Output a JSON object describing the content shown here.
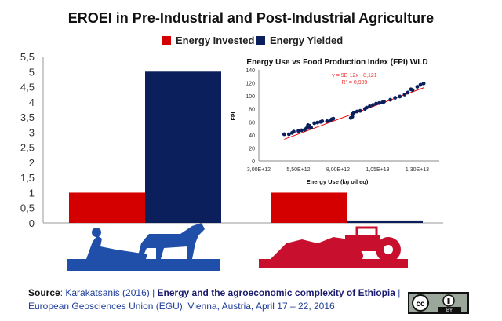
{
  "chart_data": [
    {
      "type": "bar",
      "title": "EROEI in Pre-Industrial and Post-Industrial Agriculture",
      "categories": [
        "Pre-Industrial",
        "Post-Industrial"
      ],
      "series": [
        {
          "name": "Energy Invested",
          "color": "#d40000",
          "values": [
            1,
            1
          ]
        },
        {
          "name": "Energy Yielded",
          "color": "#0b1f5c",
          "values": [
            5,
            0.08
          ]
        }
      ],
      "ylim": [
        0,
        5.5
      ],
      "yticks": [
        "0",
        "0,5",
        "1",
        "1,5",
        "2",
        "2,5",
        "3",
        "3,5",
        "4",
        "4,5",
        "5",
        "5,5"
      ],
      "legend": "top-center"
    },
    {
      "type": "scatter",
      "title": "Energy Use vs Food Production Index (FPI) WLD",
      "xlabel": "Energy Use (kg oil eq)",
      "ylabel": "FPI",
      "xlim": [
        3000000000000.0,
        14000000000000.0
      ],
      "ylim": [
        0,
        140
      ],
      "xticks": [
        "3,00E+12",
        "5,50E+12",
        "8,00E+12",
        "1,05E+13",
        "1,30E+13"
      ],
      "yticks": [
        "0",
        "20",
        "40",
        "60",
        "80",
        "100",
        "120",
        "140"
      ],
      "equation": "y = 9E-12x - 8,121",
      "r2": "R² = 0,989",
      "trend": {
        "slope": 9e-12,
        "intercept": -8.121
      },
      "points_x_e12": [
        4.6,
        4.9,
        5.1,
        5.2,
        5.5,
        5.7,
        5.9,
        6.0,
        6.1,
        6.1,
        6.2,
        6.3,
        6.5,
        6.7,
        6.9,
        7.0,
        7.3,
        7.5,
        7.6,
        7.7,
        8.8,
        8.9,
        8.9,
        9.0,
        9.2,
        9.4,
        9.7,
        9.8,
        10.0,
        10.2,
        10.4,
        10.6,
        10.8,
        10.9,
        11.3,
        11.6,
        11.9,
        12.2,
        12.4,
        12.6,
        12.7,
        13.0,
        13.2,
        13.4
      ],
      "points_y": [
        41,
        41,
        43,
        45,
        46,
        47,
        48,
        50,
        52,
        55,
        54,
        51,
        58,
        59,
        60,
        61,
        61,
        62,
        64,
        65,
        66,
        68,
        72,
        74,
        76,
        77,
        80,
        82,
        84,
        86,
        88,
        89,
        90,
        91,
        94,
        97,
        99,
        102,
        105,
        110,
        109,
        114,
        117,
        119
      ]
    }
  ],
  "source": {
    "label": "Source",
    "text1": ": Karakatsanis (2016) | ",
    "bold": "Energy and the agroeconomic complexity of Ethiopia",
    "text2": " |",
    "line2": "European Geosciences Union (EGU); Vienna, Austria, April 17 – 22, 2016"
  },
  "license": {
    "icon": "cc-by-icon",
    "text": "BY"
  }
}
